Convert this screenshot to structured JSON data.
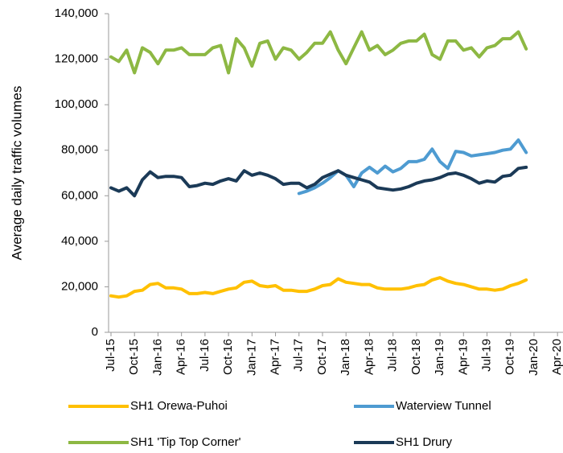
{
  "chart_data": {
    "type": "line",
    "ylabel": "Average daily traffic volumes",
    "categories": [
      "Jul-15",
      null,
      null,
      "Oct-15",
      null,
      null,
      "Jan-16",
      null,
      null,
      "Apr-16",
      null,
      null,
      "Jul-16",
      null,
      null,
      "Oct-16",
      null,
      null,
      "Jan-17",
      null,
      null,
      "Apr-17",
      null,
      null,
      "Jul-17",
      null,
      null,
      "Oct-17",
      null,
      null,
      "Jan-18",
      null,
      null,
      "Apr-18",
      null,
      null,
      "Jul-18",
      null,
      null,
      "Oct-18",
      null,
      null,
      "Jan-19",
      null,
      null,
      "Apr-19",
      null,
      null,
      "Jul-19",
      null,
      null,
      "Oct-19",
      null,
      null,
      "Jan-20",
      null,
      null,
      "Apr-20"
    ],
    "series": [
      {
        "name": "SH1 Orewa-Puhoi",
        "color": "#ffc000",
        "values": [
          16000,
          15500,
          16000,
          18000,
          18500,
          21000,
          21500,
          19500,
          19500,
          19000,
          17000,
          17000,
          17500,
          17000,
          18000,
          19000,
          19500,
          22000,
          22500,
          20500,
          20000,
          20500,
          18500,
          18500,
          18000,
          18000,
          19000,
          20500,
          21000,
          23500,
          22000,
          21500,
          21000,
          21000,
          19500,
          19000,
          19000,
          19000,
          19500,
          20500,
          21000,
          23000,
          24000,
          22500,
          21500,
          21000,
          20000,
          19000,
          19000,
          18500,
          19000,
          20500,
          21500,
          23000,
          null,
          null,
          null,
          null
        ]
      },
      {
        "name": "Waterview Tunnel",
        "color": "#4e9bd1",
        "values": [
          null,
          null,
          null,
          null,
          null,
          null,
          null,
          null,
          null,
          null,
          null,
          null,
          null,
          null,
          null,
          null,
          null,
          null,
          null,
          null,
          null,
          null,
          null,
          null,
          61000,
          62000,
          63500,
          65500,
          68000,
          71000,
          69000,
          64000,
          70000,
          72500,
          70000,
          73000,
          70500,
          72000,
          75000,
          75000,
          76000,
          80500,
          75000,
          72000,
          79500,
          79000,
          77500,
          78000,
          78500,
          79000,
          80000,
          80500,
          84500,
          79000,
          null,
          null,
          null,
          null
        ]
      },
      {
        "name": "SH1 'Tip Top Corner'",
        "color": "#8db843",
        "values": [
          121000,
          119000,
          124000,
          114000,
          125000,
          123000,
          118000,
          124000,
          124000,
          125000,
          122000,
          122000,
          122000,
          125000,
          126000,
          114000,
          129000,
          125000,
          117000,
          127000,
          128000,
          120000,
          125000,
          124000,
          120000,
          123000,
          127000,
          127000,
          132000,
          124000,
          118000,
          125000,
          132000,
          124000,
          126000,
          122000,
          124000,
          127000,
          128000,
          128000,
          131000,
          122000,
          120000,
          128000,
          128000,
          124000,
          125000,
          121000,
          125000,
          126000,
          129000,
          129000,
          132000,
          124500,
          null,
          null,
          null,
          null
        ]
      },
      {
        "name": "SH1 Drury",
        "color": "#1b3a57",
        "values": [
          63500,
          62000,
          63500,
          60000,
          67000,
          70500,
          68000,
          68500,
          68500,
          68000,
          64000,
          64500,
          65500,
          65000,
          66500,
          67500,
          66500,
          71000,
          69000,
          70000,
          69000,
          67500,
          65000,
          65500,
          65500,
          63500,
          65000,
          68000,
          69500,
          71000,
          69000,
          68000,
          67000,
          66000,
          63500,
          63000,
          62500,
          63000,
          64000,
          65500,
          66500,
          67000,
          68000,
          69500,
          70000,
          69000,
          67500,
          65500,
          66500,
          66000,
          68500,
          69000,
          72000,
          72500,
          null,
          null,
          null,
          null
        ]
      }
    ],
    "ylim": [
      0,
      140000
    ],
    "yticks": [
      0,
      {
        "value": 20000,
        "label": "20,000"
      },
      {
        "value": 40000,
        "label": "40,000"
      },
      {
        "value": 60000,
        "label": "60,000"
      },
      {
        "value": 80000,
        "label": "80,000"
      },
      {
        "value": 100000,
        "label": "100,000"
      },
      {
        "value": 120000,
        "label": "120,000"
      },
      {
        "value": 140000,
        "label": "140,000"
      }
    ],
    "grid": false,
    "legend": "bottom"
  }
}
